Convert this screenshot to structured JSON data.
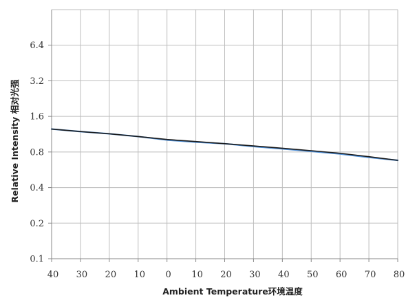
{
  "chart_data": {
    "type": "line",
    "title": "",
    "xlabel": "Ambient Temperature环境温度",
    "ylabel": "Relative Intensity 相对光强",
    "y_scale": "log2",
    "ylim": [
      0.1,
      12.8
    ],
    "y_ticks": [
      0.1,
      0.2,
      0.4,
      0.8,
      1.6,
      3.2,
      6.4
    ],
    "y_tick_labels": [
      "0.1",
      "0.2",
      "0.4",
      "0.8",
      "1.6",
      "3.2",
      "6.4"
    ],
    "x_tick_labels": [
      "40",
      "30",
      "20",
      "10",
      "0",
      "10",
      "20",
      "30",
      "40",
      "50",
      "60",
      "70",
      "80"
    ],
    "x": [
      -40,
      -30,
      -20,
      -10,
      0,
      10,
      20,
      30,
      40,
      50,
      60,
      70,
      80
    ],
    "xlim": [
      -40,
      80
    ],
    "grid": true,
    "highlight_x": 20,
    "series": [
      {
        "name": "",
        "color": "#1a1a1a",
        "values": [
          1.25,
          1.19,
          1.14,
          1.08,
          1.02,
          0.98,
          0.94,
          0.9,
          0.86,
          0.82,
          0.78,
          0.73,
          0.68
        ]
      },
      {
        "name": "",
        "color": "#4f8fd6",
        "values": [
          1.25,
          1.19,
          1.14,
          1.08,
          1.01,
          0.97,
          0.94,
          0.89,
          0.85,
          0.81,
          0.77,
          0.72,
          0.68
        ]
      }
    ]
  }
}
